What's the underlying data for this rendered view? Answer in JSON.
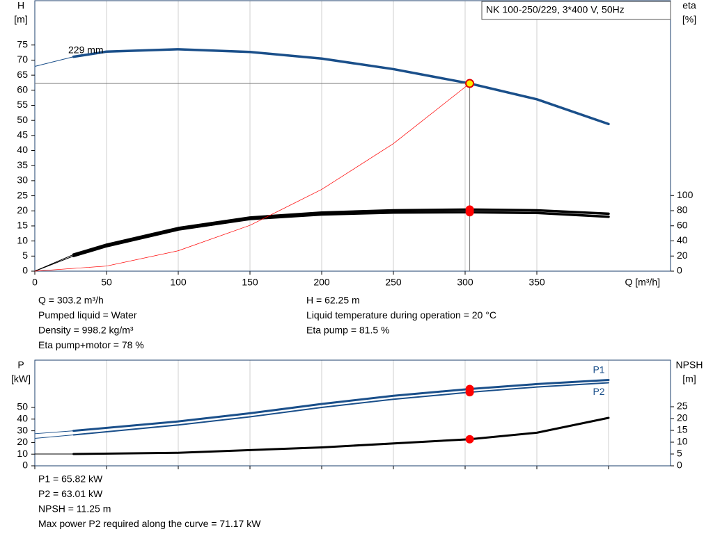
{
  "chart_data": [
    {
      "type": "line",
      "title": "NK 100-250/229, 3*400 V, 50Hz",
      "y_label": [
        "H",
        "[m]"
      ],
      "y2_label": [
        "eta",
        "[%]"
      ],
      "x_label": "Q [m³/h]",
      "annotation": "229 mm",
      "xlim": [
        0,
        443.2
      ],
      "ylim": [
        0,
        89.7
      ],
      "y2lim": [
        0,
        357.8
      ],
      "xticks": [
        0,
        50,
        100,
        150,
        200,
        250,
        300,
        350
      ],
      "yticks": [
        0,
        5,
        10,
        15,
        20,
        25,
        30,
        35,
        40,
        45,
        50,
        55,
        60,
        65,
        70,
        75
      ],
      "y2ticks": [
        0,
        20,
        40,
        60,
        80,
        100
      ],
      "grid": true,
      "series": [
        {
          "color": "#1a4f8a",
          "width": 1,
          "x": [
            0,
            27
          ],
          "values": [
            67.9,
            71.1
          ]
        },
        {
          "color": "#1a4f8a",
          "width": 3.5,
          "x": [
            27,
            50,
            100,
            150,
            200,
            250,
            303.2,
            350,
            400
          ],
          "values": [
            71.1,
            72.8,
            73.6,
            72.7,
            70.5,
            67,
            62.25,
            57,
            48.8
          ]
        },
        {
          "color": "#000000",
          "width": 1,
          "axis": "y2",
          "x": [
            0,
            27
          ],
          "values": [
            0,
            22
          ]
        },
        {
          "color": "#000000",
          "width": 3.5,
          "axis": "y2",
          "x": [
            27,
            50,
            100,
            150,
            200,
            250,
            303.2,
            350,
            400
          ],
          "values": [
            22,
            35,
            57,
            71,
            77.5,
            80.5,
            81.5,
            80.5,
            76
          ]
        },
        {
          "color": "#000000",
          "width": 1,
          "axis": "y2",
          "x": [
            0,
            27
          ],
          "values": [
            0,
            20
          ]
        },
        {
          "color": "#000000",
          "width": 3.5,
          "axis": "y2",
          "x": [
            27,
            50,
            100,
            150,
            200,
            250,
            303.2,
            350,
            400
          ],
          "values": [
            20,
            33,
            55,
            69,
            75,
            77.5,
            78,
            77,
            72
          ]
        },
        {
          "color": "#ff0000",
          "width": 0.7,
          "x": [
            0,
            50,
            100,
            150,
            200,
            250,
            303.2
          ],
          "values": [
            0,
            1.69,
            6.77,
            15.2,
            27.1,
            42.3,
            62.25
          ]
        }
      ],
      "points": [
        {
          "x": 303.2,
          "y": 62.25,
          "color": "#ffee00",
          "guides": true
        },
        {
          "x": 303.2,
          "y": 81.5,
          "axis": "y2",
          "color": "#ff0000"
        },
        {
          "x": 303.2,
          "y": 78,
          "axis": "y2",
          "color": "#ff0000"
        }
      ]
    },
    {
      "type": "line",
      "y_label": [
        "P",
        "[kW]"
      ],
      "y2_label": [
        "NPSH",
        "[m]"
      ],
      "xlim": [
        0,
        443.2
      ],
      "ylim": [
        0,
        90.5
      ],
      "y2lim": [
        0,
        44.7
      ],
      "xticks": [
        0,
        50,
        100,
        150,
        200,
        250,
        300,
        350,
        400
      ],
      "xtick_labels": false,
      "yticks": [
        0,
        10,
        20,
        30,
        40,
        50
      ],
      "y2ticks": [
        0,
        5,
        10,
        15,
        20,
        25
      ],
      "grid": true,
      "series": [
        {
          "color": "#1a4f8a",
          "width": 1,
          "x": [
            0,
            27
          ],
          "values": [
            27.5,
            30
          ]
        },
        {
          "name": "P1",
          "color": "#1a4f8a",
          "width": 3,
          "x": [
            27,
            100,
            150,
            200,
            250,
            303.2,
            350,
            400
          ],
          "values": [
            30,
            38,
            45,
            53,
            60,
            65.82,
            70,
            73.5
          ]
        },
        {
          "color": "#1a4f8a",
          "width": 1,
          "x": [
            0,
            27
          ],
          "values": [
            23.5,
            26.5
          ]
        },
        {
          "name": "P2",
          "color": "#1a4f8a",
          "width": 2,
          "x": [
            27,
            100,
            150,
            200,
            250,
            303.2,
            350,
            400
          ],
          "values": [
            26.5,
            35,
            42,
            50,
            57,
            63.01,
            67.5,
            71.17
          ]
        },
        {
          "color": "#000000",
          "width": 1,
          "axis": "y2",
          "x": [
            0,
            27
          ],
          "values": [
            5,
            5
          ]
        },
        {
          "color": "#000000",
          "width": 3,
          "axis": "y2",
          "x": [
            27,
            100,
            200,
            303.2,
            350,
            400
          ],
          "values": [
            5,
            5.5,
            7.8,
            11.25,
            14,
            20.3
          ]
        }
      ],
      "points": [
        {
          "x": 303.2,
          "y": 65.82,
          "color": "#ff0000"
        },
        {
          "x": 303.2,
          "y": 63.01,
          "color": "#ff0000"
        },
        {
          "x": 303.2,
          "y": 11.25,
          "axis": "y2",
          "color": "#ff0000"
        }
      ]
    }
  ],
  "info_top_left": [
    "Q = 303.2 m³/h",
    "Pumped liquid = Water",
    "Density = 998.2 kg/m³",
    "Eta pump+motor = 78 %"
  ],
  "info_top_right": [
    "H = 62.25 m",
    "Liquid temperature during operation = 20 °C",
    "Eta pump = 81.5 %"
  ],
  "info_bottom": [
    "P1 = 65.82 kW",
    "P2 = 63.01 kW",
    "NPSH = 11.25 m",
    "Max power P2 required along the curve = 71.17 kW"
  ]
}
